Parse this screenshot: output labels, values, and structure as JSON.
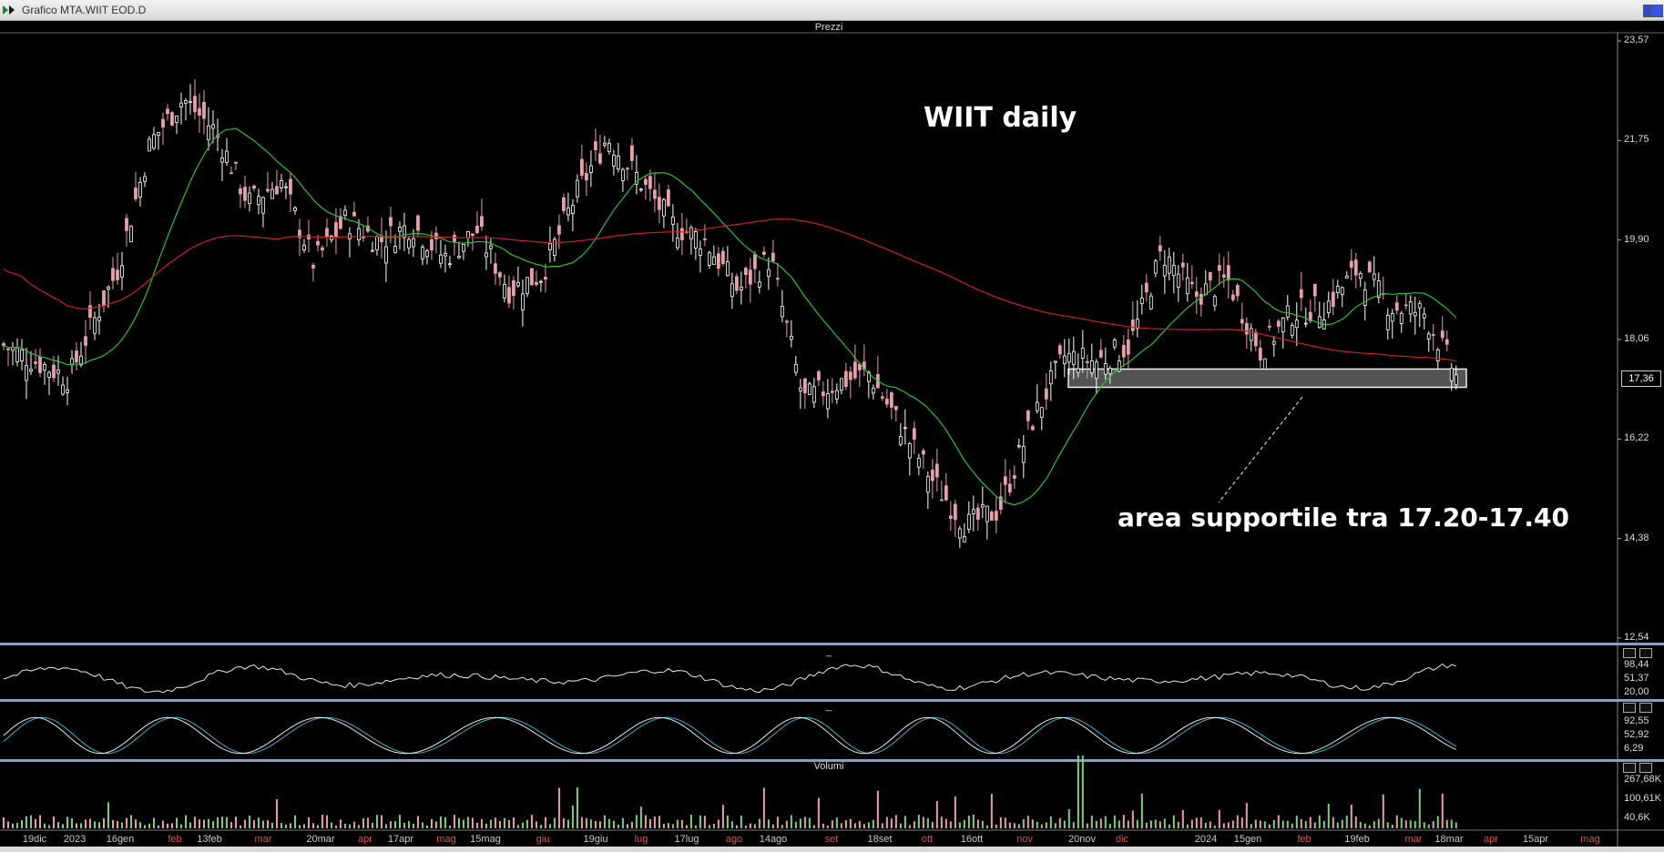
{
  "window": {
    "title": "Grafico MTA.WIIT EOD.D"
  },
  "panels": {
    "price_title": "Prezzi",
    "volume_title": "Volumi",
    "osc1_title": "_",
    "osc2_title": "_"
  },
  "annotations": {
    "chart_title": "WIIT daily",
    "support_note": "area supportile tra 17.20-17.40"
  },
  "price_axis": [
    "23,57",
    "21,75",
    "19,90",
    "18,06",
    "16,22",
    "14,38",
    "12,54"
  ],
  "last_price": "17,36",
  "osc1_axis": [
    "98,44",
    "51,37",
    "20,00"
  ],
  "osc2_axis": [
    "92,55",
    "52,92",
    "6,29"
  ],
  "volume_axis": [
    "267,68K",
    "100,61K",
    "40,6K"
  ],
  "x_axis": [
    {
      "label": "19dic",
      "kind": "date"
    },
    {
      "label": "2023",
      "kind": "date"
    },
    {
      "label": "16gen",
      "kind": "date"
    },
    {
      "label": "feb",
      "kind": "month"
    },
    {
      "label": "13feb",
      "kind": "date"
    },
    {
      "label": "mar",
      "kind": "month"
    },
    {
      "label": "20mar",
      "kind": "date"
    },
    {
      "label": "apr",
      "kind": "month"
    },
    {
      "label": "17apr",
      "kind": "date"
    },
    {
      "label": "mag",
      "kind": "month"
    },
    {
      "label": "15mag",
      "kind": "date"
    },
    {
      "label": "giu",
      "kind": "month"
    },
    {
      "label": "19giu",
      "kind": "date"
    },
    {
      "label": "lug",
      "kind": "month"
    },
    {
      "label": "17lug",
      "kind": "date"
    },
    {
      "label": "ago",
      "kind": "month"
    },
    {
      "label": "14ago",
      "kind": "date"
    },
    {
      "label": "set",
      "kind": "month"
    },
    {
      "label": "18set",
      "kind": "date"
    },
    {
      "label": "ott",
      "kind": "month"
    },
    {
      "label": "16ott",
      "kind": "date"
    },
    {
      "label": "nov",
      "kind": "month"
    },
    {
      "label": "20nov",
      "kind": "date"
    },
    {
      "label": "dic",
      "kind": "month"
    },
    {
      "label": "2024",
      "kind": "date"
    },
    {
      "label": "15gen",
      "kind": "date"
    },
    {
      "label": "feb",
      "kind": "month"
    },
    {
      "label": "19feb",
      "kind": "date"
    },
    {
      "label": "mar",
      "kind": "month"
    },
    {
      "label": "18mar",
      "kind": "date"
    },
    {
      "label": "apr",
      "kind": "month"
    },
    {
      "label": "15apr",
      "kind": "date"
    },
    {
      "label": "mag",
      "kind": "month"
    }
  ],
  "colors": {
    "background": "#000000",
    "bull_candle": "#ffffff",
    "bear_candle": "#e8a0a8",
    "ma_fast": "#2fbf2f",
    "ma_slow": "#d02020",
    "support_zone": "#d0d0d0",
    "osc_line_a": "#ffffff",
    "osc_line_b": "#40b0d0",
    "volume_bar": "#e8a0a8"
  },
  "chart_data": {
    "type": "candlestick",
    "symbol": "WIIT",
    "ylim": [
      12.54,
      23.57
    ],
    "close_path": [
      [
        0,
        17.9
      ],
      [
        0.02,
        17.6
      ],
      [
        0.04,
        17.3
      ],
      [
        0.05,
        18.0
      ],
      [
        0.07,
        19.3
      ],
      [
        0.09,
        21.6
      ],
      [
        0.11,
        22.4
      ],
      [
        0.13,
        21.8
      ],
      [
        0.15,
        20.5
      ],
      [
        0.17,
        20.9
      ],
      [
        0.19,
        19.4
      ],
      [
        0.21,
        20.2
      ],
      [
        0.23,
        19.8
      ],
      [
        0.25,
        20.1
      ],
      [
        0.27,
        19.5
      ],
      [
        0.29,
        20.0
      ],
      [
        0.31,
        18.9
      ],
      [
        0.33,
        19.2
      ],
      [
        0.35,
        20.6
      ],
      [
        0.37,
        21.7
      ],
      [
        0.39,
        20.9
      ],
      [
        0.41,
        20.1
      ],
      [
        0.43,
        19.8
      ],
      [
        0.45,
        18.9
      ],
      [
        0.47,
        19.5
      ],
      [
        0.49,
        16.9
      ],
      [
        0.51,
        17.2
      ],
      [
        0.53,
        17.4
      ],
      [
        0.55,
        16.4
      ],
      [
        0.57,
        15.4
      ],
      [
        0.59,
        14.6
      ],
      [
        0.61,
        14.9
      ],
      [
        0.63,
        16.5
      ],
      [
        0.65,
        17.7
      ],
      [
        0.67,
        17.6
      ],
      [
        0.69,
        17.9
      ],
      [
        0.71,
        19.6
      ],
      [
        0.73,
        18.8
      ],
      [
        0.75,
        19.1
      ],
      [
        0.77,
        17.8
      ],
      [
        0.79,
        18.5
      ],
      [
        0.81,
        18.6
      ],
      [
        0.83,
        19.3
      ],
      [
        0.85,
        18.6
      ],
      [
        0.87,
        18.5
      ],
      [
        0.89,
        17.36
      ]
    ],
    "support_zone": [
      17.2,
      17.4
    ]
  }
}
